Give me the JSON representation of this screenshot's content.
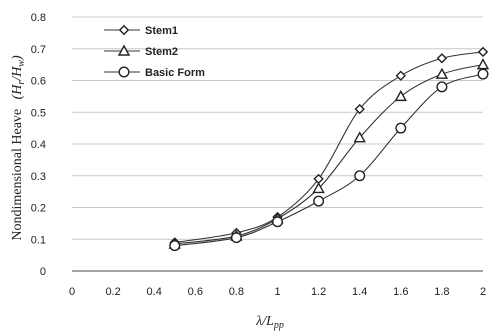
{
  "chart_data": {
    "type": "line",
    "xlabel": "λ/L",
    "xlabel_sub": "pp",
    "ylabel": "Nondimensional  Heave",
    "ylabel_math": "(H",
    "ylabel_math_sub1": "r",
    "ylabel_math_mid": "/H",
    "ylabel_math_sub2": "w",
    "ylabel_math_end": ")",
    "xlim": [
      0,
      2
    ],
    "ylim": [
      0,
      0.8
    ],
    "x_ticks": [
      "0",
      "0.2",
      "0.4",
      "0.6",
      "0.8",
      "1",
      "1.2",
      "1.4",
      "1.6",
      "1.8",
      "2"
    ],
    "y_ticks": [
      "0",
      "0.1",
      "0.2",
      "0.3",
      "0.4",
      "0.5",
      "0.6",
      "0.7",
      "0.8"
    ],
    "grid": "horizontal",
    "legend_position": "top-left",
    "series": [
      {
        "name": "Stem1",
        "marker": "diamond",
        "x": [
          0.5,
          0.8,
          1.0,
          1.2,
          1.4,
          1.6,
          1.8,
          2.0
        ],
        "y": [
          0.09,
          0.12,
          0.17,
          0.29,
          0.51,
          0.615,
          0.67,
          0.69
        ]
      },
      {
        "name": "Stem2",
        "marker": "triangle",
        "x": [
          0.5,
          0.8,
          1.0,
          1.2,
          1.4,
          1.6,
          1.8,
          2.0
        ],
        "y": [
          0.085,
          0.11,
          0.165,
          0.26,
          0.42,
          0.55,
          0.62,
          0.65
        ]
      },
      {
        "name": "Basic Form",
        "marker": "circle",
        "x": [
          0.5,
          0.8,
          1.0,
          1.2,
          1.4,
          1.6,
          1.8,
          2.0
        ],
        "y": [
          0.08,
          0.105,
          0.155,
          0.22,
          0.3,
          0.45,
          0.58,
          0.62
        ]
      }
    ]
  }
}
